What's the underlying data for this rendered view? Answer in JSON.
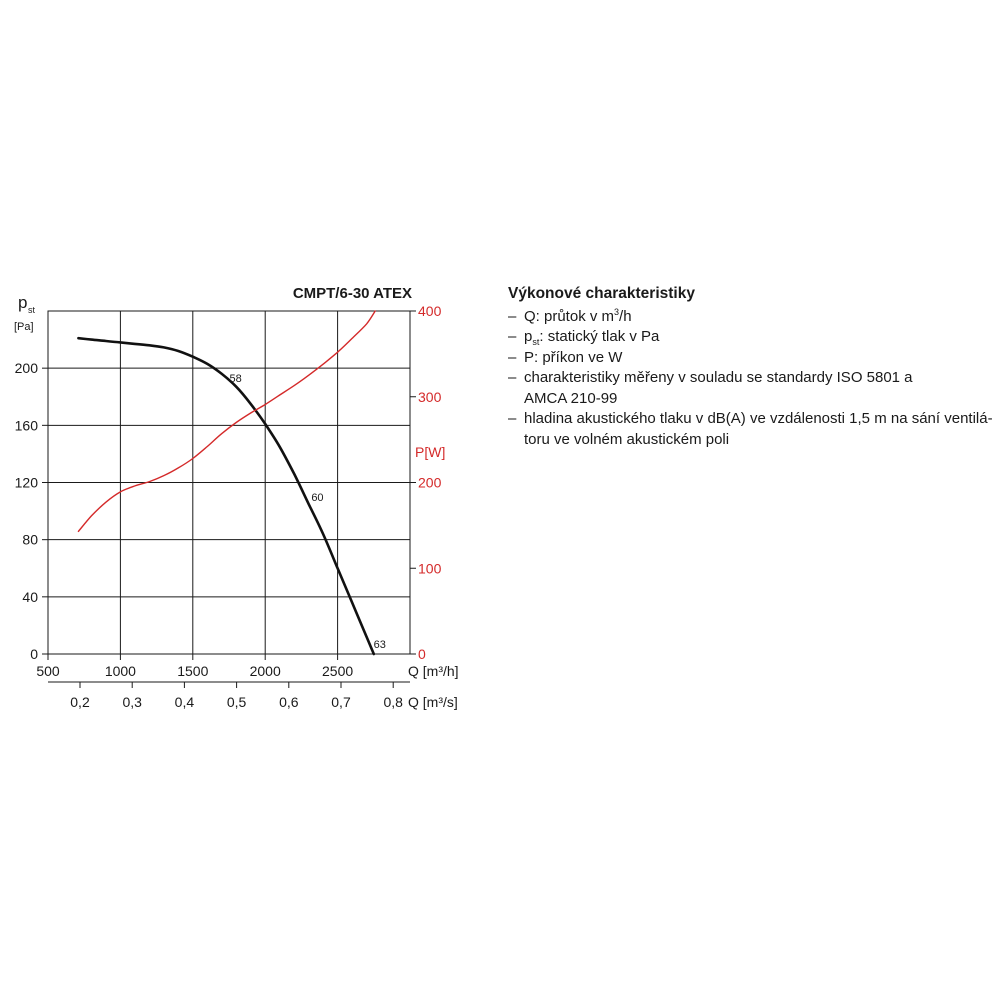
{
  "chart_data": {
    "type": "line",
    "title": "CMPT/6-30 ATEX",
    "left_axis": {
      "symbol": "p",
      "subscript": "st",
      "unit": "[Pa]",
      "ticks": [
        0,
        40,
        80,
        120,
        160,
        200
      ],
      "range": [
        0,
        240
      ]
    },
    "right_axis": {
      "label": "P[W]",
      "ticks": [
        0,
        100,
        200,
        300,
        400
      ],
      "range": [
        0,
        400
      ],
      "color": "#d42a2a"
    },
    "x_axis": {
      "label": "Q [m³/h]",
      "ticks": [
        500,
        1000,
        1500,
        2000,
        2500
      ],
      "range": [
        500,
        3000
      ]
    },
    "x2_axis": {
      "label": "Q [m³/s]",
      "ticks": [
        "0,2",
        "0,3",
        "0,4",
        "0,5",
        "0,6",
        "0,7",
        "0,8"
      ],
      "values": [
        0.2,
        0.3,
        0.4,
        0.5,
        0.6,
        0.7,
        0.8
      ]
    },
    "grid": true,
    "series": [
      {
        "axis": "left",
        "color": "#111111",
        "x": [
          710,
          800,
          900,
          1000,
          1100,
          1200,
          1300,
          1400,
          1500,
          1600,
          1700,
          1800,
          1900,
          2000,
          2100,
          2200,
          2300,
          2400,
          2500,
          2600,
          2700,
          2750
        ],
        "y": [
          221,
          220,
          219,
          218,
          217,
          216,
          214.5,
          212,
          208,
          203,
          196,
          187,
          175,
          161,
          145,
          126,
          105,
          84,
          60,
          36,
          12,
          0
        ]
      },
      {
        "axis": "right",
        "color": "#d42a2a",
        "x": [
          710,
          800,
          900,
          1000,
          1100,
          1200,
          1300,
          1400,
          1500,
          1600,
          1700,
          1800,
          1900,
          2000,
          2100,
          2200,
          2300,
          2400,
          2500,
          2600,
          2700,
          2760
        ],
        "y": [
          143,
          161,
          177,
          189,
          196,
          201,
          208,
          217,
          228,
          242,
          257,
          270,
          281,
          291,
          302,
          313,
          325,
          338,
          352,
          368,
          385,
          400
        ]
      }
    ],
    "annotations": [
      {
        "text": "58",
        "x": 1795,
        "y": 193
      },
      {
        "text": "60",
        "x": 2360,
        "y": 110
      },
      {
        "text": "63",
        "x": 2790,
        "y": 7
      }
    ]
  },
  "description": {
    "heading": "Výkonové charakteristiky",
    "item1_pre": "Q: průtok v m",
    "item1_sup": "3",
    "item1_post": "/h",
    "item2_pre": "p",
    "item2_sub": "st",
    "item2_post": ": statický tlak v Pa",
    "item3": "P: příkon ve W",
    "item4_line1": "charakteristiky měřeny v souladu se standardy ISO 5801 a",
    "item4_line2": "AMCA 210-99",
    "item5_line1": "hladina akustického tlaku v dB(A) ve vzdálenosti 1,5 m na sání ventilá-",
    "item5_line2": "toru ve volném akustickém poli"
  }
}
